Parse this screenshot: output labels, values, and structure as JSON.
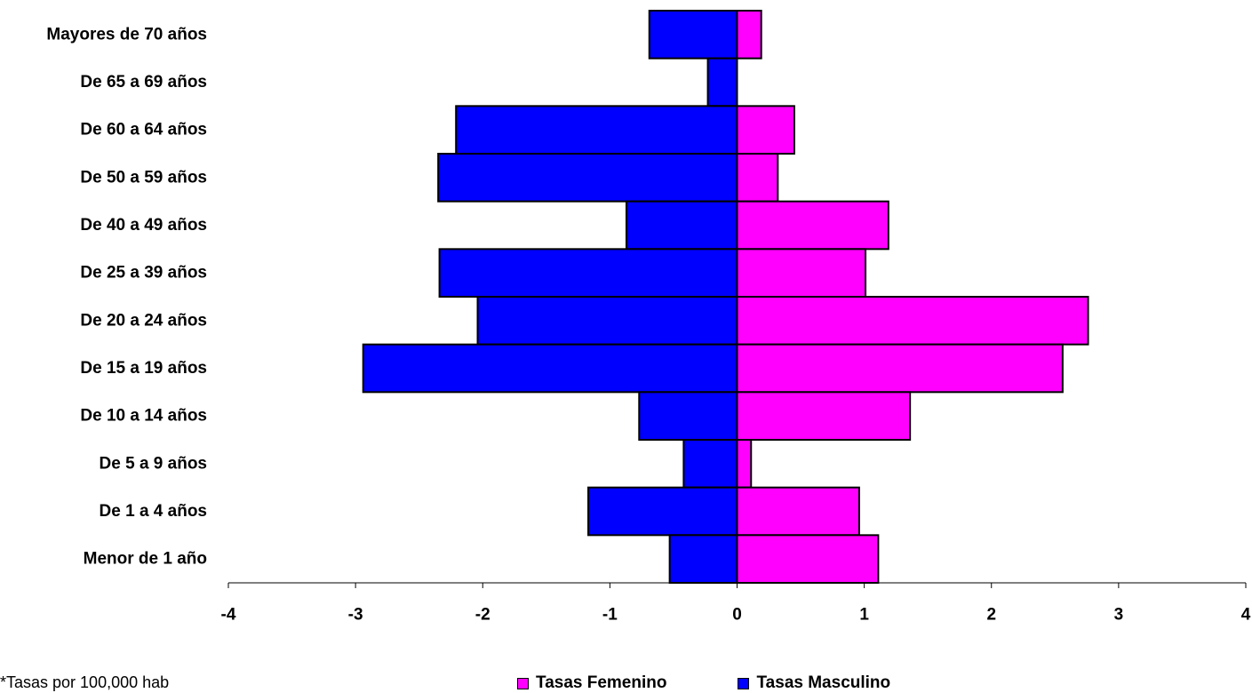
{
  "chart_data": {
    "type": "bar",
    "orientation": "horizontal",
    "categories": [
      "Mayores de 70 años",
      "De 65 a 69 años",
      "De 60 a 64 años",
      "De 50 a 59 años",
      "De 40 a 49 años",
      "De 25 a 39 años",
      "De 20 a 24 años",
      "De 15 a 19 años",
      "De 10 a 14 años",
      "De 5 a 9 años",
      "De 1 a 4 años",
      "Menor de 1 año"
    ],
    "series": [
      {
        "name": "Tasas Femenino",
        "color": "#ff00ff",
        "values": [
          0.19,
          0,
          0.45,
          0.32,
          1.19,
          1.01,
          2.76,
          2.56,
          1.36,
          0.11,
          0.96,
          1.11
        ]
      },
      {
        "name": "Tasas Masculino",
        "color": "#0000ff",
        "values": [
          -0.69,
          -0.23,
          -2.21,
          -2.35,
          -0.87,
          -2.34,
          -2.04,
          -2.94,
          -0.77,
          -0.42,
          -1.17,
          -0.53
        ]
      }
    ],
    "xlim": [
      -4,
      4
    ],
    "xticks": [
      "-4",
      "-3",
      "-2",
      "-1",
      "0",
      "1",
      "2",
      "3",
      "4"
    ],
    "grid": false,
    "legend_position": "bottom"
  },
  "footnote": "*Tasas por 100,000 hab"
}
